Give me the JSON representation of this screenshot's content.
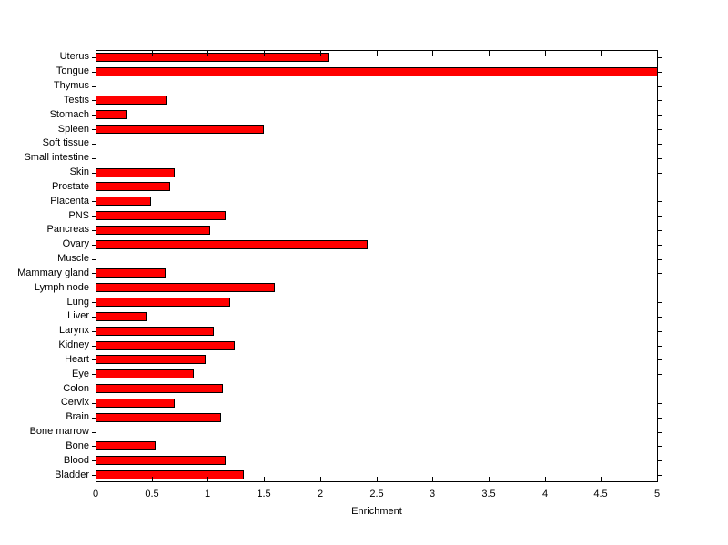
{
  "chart_data": {
    "type": "bar",
    "orientation": "horizontal",
    "title": "",
    "xlabel": "Enrichment",
    "ylabel": "",
    "xlim": [
      0,
      5
    ],
    "x_ticks": [
      0,
      0.5,
      1,
      1.5,
      2,
      2.5,
      3,
      3.5,
      4,
      4.5,
      5
    ],
    "x_tick_labels": [
      "0",
      "0.5",
      "1",
      "1.5",
      "2",
      "2.5",
      "3",
      "3.5",
      "4",
      "4.5",
      "5"
    ],
    "grid": false,
    "legend": "none",
    "bar_color": "#ff0000",
    "bar_edge_color": "#000000",
    "categories_top_to_bottom": [
      "Uterus",
      "Tongue",
      "Thymus",
      "Testis",
      "Stomach",
      "Spleen",
      "Soft tissue",
      "Small intestine",
      "Skin",
      "Prostate",
      "Placenta",
      "PNS",
      "Pancreas",
      "Ovary",
      "Muscle",
      "Mammary gland",
      "Lymph node",
      "Lung",
      "Liver",
      "Larynx",
      "Kidney",
      "Heart",
      "Eye",
      "Colon",
      "Cervix",
      "Brain",
      "Bone marrow",
      "Bone",
      "Blood",
      "Bladder"
    ],
    "values": [
      2.07,
      5.0,
      0,
      0.63,
      0.28,
      1.5,
      0,
      0,
      0.7,
      0.66,
      0.49,
      1.16,
      1.02,
      2.42,
      0,
      0.62,
      1.59,
      1.2,
      0.45,
      1.05,
      1.24,
      0.98,
      0.87,
      1.13,
      0.7,
      1.12,
      0,
      0.53,
      1.16,
      1.32
    ]
  }
}
